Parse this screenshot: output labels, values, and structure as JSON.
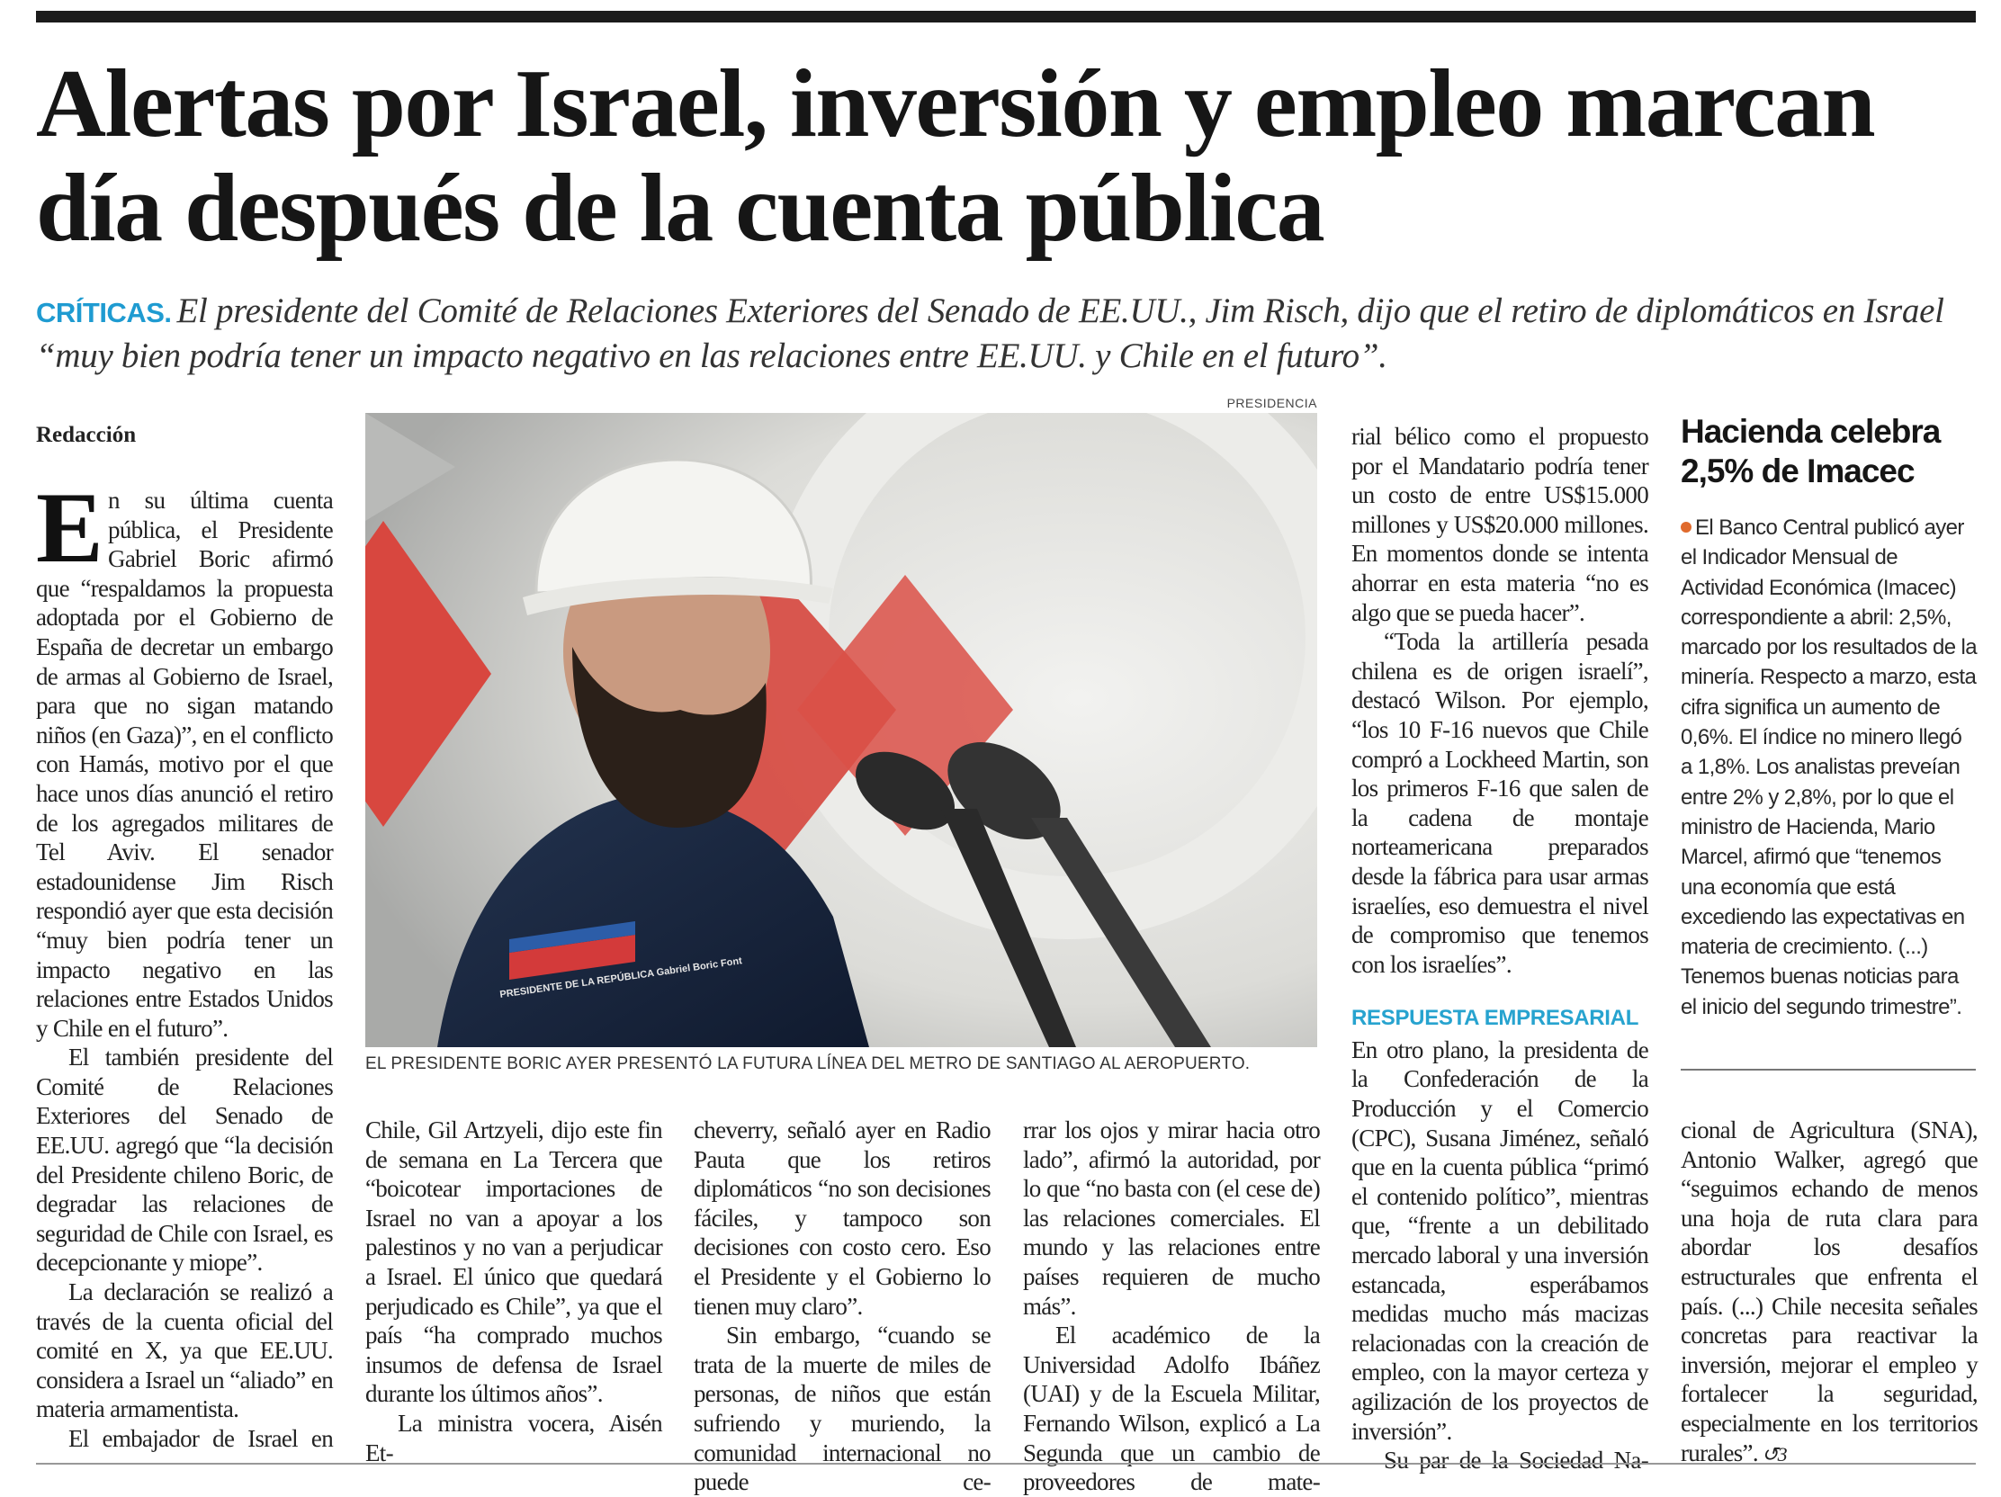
{
  "article": {
    "headline": "Alertas por Israel, inversión y empleo marcan día después de la cuenta pública",
    "kicker": "CRÍTICAS.",
    "deck": "El presidente del Comité de Relaciones Exteriores del Senado de EE.UU., Jim Risch, dijo que el retiro de diplomáticos en Israel “muy bien podría tener un impacto negativo en las relaciones entre EE.UU. y Chile en el futuro”.",
    "byline": "Redacción",
    "photo_credit": "PRESIDENCIA",
    "photo_caption": "EL PRESIDENTE BORIC AYER PRESENTÓ LA FUTURA LÍNEA DEL METRO DE SANTIAGO AL AEROPUERTO.",
    "photo_jacket_text": "PRESIDENTE DE LA REPÚBLICA Gabriel Boric Font",
    "end_mark": "↺3",
    "columns": [
      {
        "paras": [
          {
            "text": "En su última cuenta pública, el Presidente Gabriel Boric afirmó que “respaldamos la propuesta adoptada por el Gobierno de España de decretar un embargo de armas al Gobierno de Israel, para que no sigan matando niños (en Gaza)”, en el conflicto con Hamás, motivo por el que hace unos días anunció el retiro de los agregados militares de Tel Aviv. El senador estadounidense Jim Risch respondió ayer que esta decisión “muy bien podría tener un impacto negativo en las relaciones entre Estados Unidos y Chile en el futuro”.",
            "dropcap": true
          },
          {
            "text": "El también presidente del Comité de Relaciones Exteriores del Senado de EE.UU. agregó que “la decisión del Presidente chileno Boric, de degradar las relaciones de seguridad de Chile con Israel, es decepcionante y miope”."
          },
          {
            "text": "La declaración se realizó a través de la cuenta oficial del comité en X, ya que EE.UU. considera a Israel un “aliado” en materia armamentista."
          },
          {
            "text": "El embajador de Israel en"
          }
        ]
      },
      {
        "paras": [
          {
            "text": "Chile, Gil Artzyeli, dijo este fin de semana en La Tercera que “boicotear importaciones de Israel no van a apoyar a los palestinos y no van a perjudicar a Israel. El único que quedará perjudicado es Chile”, ya que el país “ha comprado muchos insumos de defensa de Israel durante los últimos años”.",
            "cont": true
          },
          {
            "text": "La ministra vocera, Aisén Et-"
          }
        ]
      },
      {
        "paras": [
          {
            "text": "cheverry, señaló ayer en Radio Pauta que los retiros diplomáticos “no son decisiones fáciles, y tampoco son decisiones con costo cero. Eso el Presidente y el Gobierno lo tienen muy claro”.",
            "cont": true
          },
          {
            "text": "Sin embargo, “cuando se trata de la muerte de miles de personas, de niños que están sufriendo y muriendo, la comunidad internacional no puede ce-"
          }
        ]
      },
      {
        "paras": [
          {
            "text": "rrar los ojos y mirar hacia otro lado”, afirmó la autoridad, por lo que “no basta con (el cese de) las relaciones comerciales. El mundo y las relaciones entre países requieren de mucho más”.",
            "cont": true
          },
          {
            "text": "El académico de la Universidad Adolfo Ibáñez (UAI) y de la Escuela Militar, Fernando Wilson, explicó a La Segunda que un cambio de proveedores de mate-"
          }
        ]
      },
      {
        "paras": [
          {
            "text": "rial bélico como el propuesto por el Mandatario podría tener un costo de entre US$15.000 millones y US$20.000 millones. En momentos donde se intenta ahorrar en esta materia “no es algo que se pueda hacer”.",
            "cont": true
          },
          {
            "text": "“Toda la artillería pesada chilena es de origen israelí”, destacó Wilson. Por ejemplo, “los 10 F-16 nuevos que Chile compró a Lockheed Martin, son los primeros F-16 que salen de la cadena de montaje norteamericana preparados desde la fábrica para usar armas israelíes, eso demuestra el nivel de compromiso que tenemos con los israelíes”."
          },
          {
            "subhead": "RESPUESTA EMPRESARIAL"
          },
          {
            "text": "En otro plano, la presidenta de la Confederación de la Producción y el Comercio (CPC), Susana Jiménez, señaló que en la cuenta pública “primó el contenido político”, mientras que, “frente a un debilitado mercado laboral y una inversión estancada, esperábamos medidas mucho más macizas relacionadas con la creación de empleo, con la mayor certeza y agilización de los proyectos de inversión”.",
            "cont": true
          },
          {
            "text": "Su par de la Sociedad Na-"
          }
        ]
      },
      {
        "paras": [
          {
            "text": "cional de Agricultura (SNA), Antonio Walker, agregó que “seguimos echando de menos una hoja de ruta clara para abordar los desafíos estructurales que enfrenta el país. (...) Chile necesita señales concretas para reactivar la inversión, mejorar el empleo y fortalecer la seguridad, especialmente en los territorios rurales”.",
            "cont": true,
            "end": true
          }
        ]
      }
    ]
  },
  "sidebar": {
    "title": "Hacienda celebra 2,5% de Imacec",
    "body": "El Banco Central publicó ayer el Indicador Mensual de Actividad Económica (Imacec) correspondiente a abril: 2,5%, marcado por los resultados de la minería. Respecto a marzo, esta cifra significa un aumento de 0,6%. El índice no minero llegó a 1,8%. Los analistas preveían entre 2% y 2,8%, por lo que el ministro de Hacienda, Mario Marcel, afirmó que “tenemos una economía que está excediendo las expectativas en materia de crecimiento. (...) Tenemos buenas noticias para el inicio del segundo trimestre”.",
    "bullet_color": "#e06a2c"
  },
  "colors": {
    "kicker": "#1f9bd1",
    "subhead": "#27a3cf",
    "text": "#222222"
  }
}
